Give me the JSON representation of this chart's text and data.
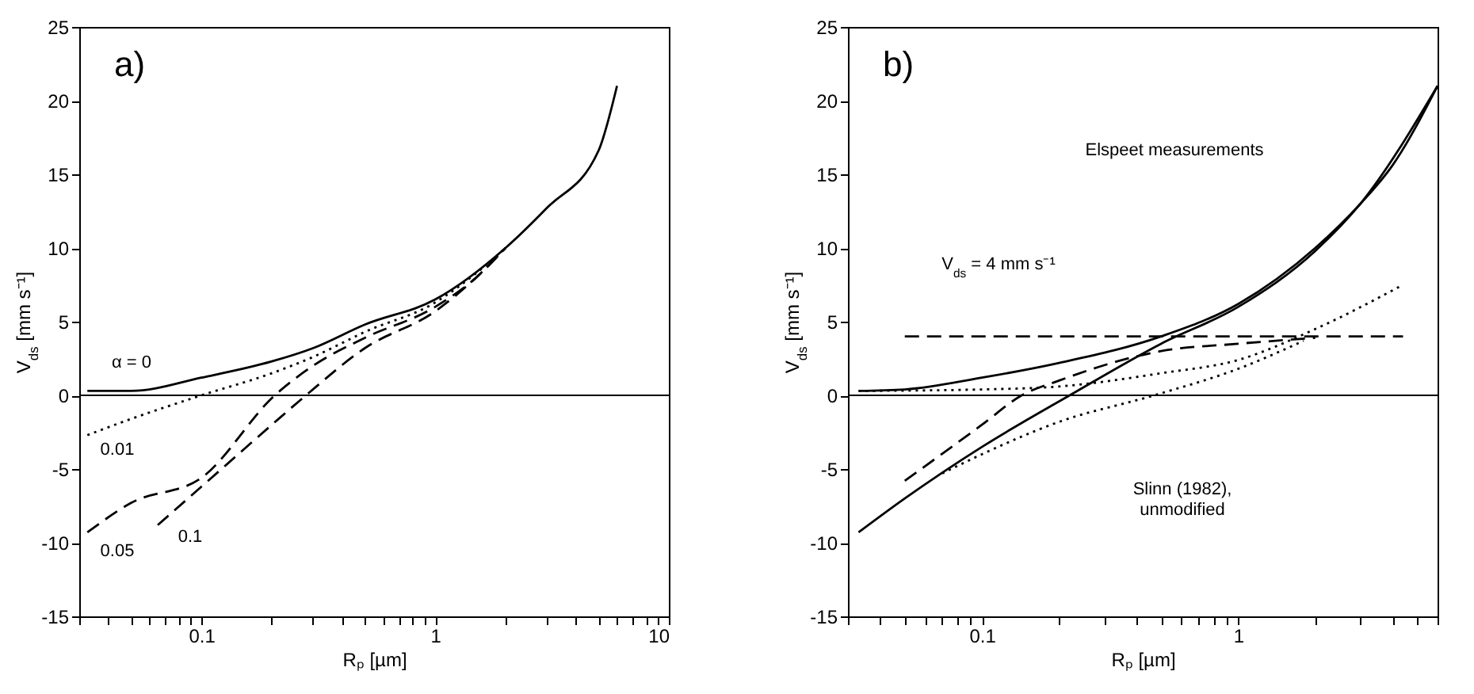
{
  "chart_data": [
    {
      "type": "line",
      "title": "a)",
      "xlabel": "Rₚ [µm]",
      "ylabel": "V$_{ds}$ [mm s⁻¹]",
      "log": "x",
      "grid": false,
      "xlim": [
        0.03,
        10
      ],
      "ylim": [
        -15,
        25
      ],
      "xticks": [
        {
          "value": 0.03,
          "label": null
        },
        {
          "value": 0.04,
          "label": null
        },
        {
          "value": 0.05,
          "label": null
        },
        {
          "value": 0.06,
          "label": null
        },
        {
          "value": 0.07,
          "label": null
        },
        {
          "value": 0.08,
          "label": null
        },
        {
          "value": 0.09,
          "label": null
        },
        0.1,
        {
          "value": 0.2,
          "label": null
        },
        {
          "value": 0.3,
          "label": null
        },
        {
          "value": 0.4,
          "label": null
        },
        {
          "value": 0.5,
          "label": null
        },
        {
          "value": 0.6,
          "label": null
        },
        {
          "value": 0.7,
          "label": null
        },
        {
          "value": 0.8,
          "label": null
        },
        {
          "value": 0.9,
          "label": null
        },
        1,
        {
          "value": 2,
          "label": null
        },
        {
          "value": 3,
          "label": null
        },
        {
          "value": 4,
          "label": null
        },
        {
          "value": 5,
          "label": null
        },
        {
          "value": 6,
          "label": null
        },
        {
          "value": 7,
          "label": null
        },
        {
          "value": 8,
          "label": null
        },
        {
          "value": 9,
          "label": null
        },
        10
      ],
      "yticks": [
        -15,
        -10,
        -5,
        0,
        5,
        10,
        15,
        20,
        25
      ],
      "ref_lines": [
        {
          "axis": "y",
          "value": 0,
          "color": "#000000",
          "line_style": "solid"
        }
      ],
      "series": [
        {
          "color": "#000000",
          "line_style": "solid",
          "x": [
            0.0325,
            0.05,
            0.1,
            0.2,
            0.3,
            0.5,
            1,
            2,
            3,
            5,
            6
          ],
          "values": [
            0.3,
            0.3,
            1.2,
            2.3,
            3.2,
            4.8,
            6.5,
            10,
            12.7,
            16.6,
            21
          ]
        },
        {
          "color": "#000000",
          "line_style": "dotted",
          "x": [
            0.0325,
            0.05,
            0.1,
            0.2,
            0.3,
            0.5,
            1,
            1.5,
            2
          ],
          "values": [
            -2.7,
            -1.6,
            0,
            1.5,
            2.6,
            4.3,
            6.3,
            8.3,
            10
          ]
        },
        {
          "color": "#000000",
          "line_style": "dashed",
          "x": [
            0.0325,
            0.05,
            0.1,
            0.206,
            0.3,
            0.5,
            1,
            1.5,
            2
          ],
          "values": [
            -9.3,
            -7.3,
            -5.6,
            0,
            2,
            3.9,
            6,
            8,
            10
          ]
        },
        {
          "color": "#000000",
          "line_style": "dashed",
          "x": [
            0.065,
            0.1,
            0.2,
            0.28,
            0.5,
            1,
            1.5,
            2
          ],
          "values": [
            -8.8,
            -6.2,
            -2,
            0,
            3.2,
            5.7,
            8,
            10
          ]
        }
      ],
      "annotations": [
        "α = 0",
        "0.01",
        "0.05",
        "0.1"
      ]
    },
    {
      "type": "line",
      "title": "b)",
      "xlabel": "Rₚ [µm]",
      "ylabel": "V$_{ds}$ [mm s⁻¹]",
      "log": "x",
      "grid": false,
      "xlim": [
        0.03,
        6
      ],
      "ylim": [
        -15,
        25
      ],
      "xticks": [
        {
          "value": 0.03,
          "label": null
        },
        {
          "value": 0.04,
          "label": null
        },
        {
          "value": 0.05,
          "label": null
        },
        {
          "value": 0.06,
          "label": null
        },
        {
          "value": 0.07,
          "label": null
        },
        {
          "value": 0.08,
          "label": null
        },
        {
          "value": 0.09,
          "label": null
        },
        0.1,
        {
          "value": 0.2,
          "label": null
        },
        {
          "value": 0.3,
          "label": null
        },
        {
          "value": 0.4,
          "label": null
        },
        {
          "value": 0.5,
          "label": null
        },
        {
          "value": 0.6,
          "label": null
        },
        {
          "value": 0.7,
          "label": null
        },
        {
          "value": 0.8,
          "label": null
        },
        {
          "value": 0.9,
          "label": null
        },
        1,
        {
          "value": 2,
          "label": null
        },
        {
          "value": 3,
          "label": null
        },
        {
          "value": 4,
          "label": null
        },
        {
          "value": 5,
          "label": null
        },
        {
          "value": 6,
          "label": null
        }
      ],
      "yticks": [
        -15,
        -10,
        -5,
        0,
        5,
        10,
        15,
        20,
        25
      ],
      "ref_lines": [
        {
          "axis": "y",
          "value": 0,
          "color": "#000000",
          "line_style": "solid"
        }
      ],
      "series": [
        {
          "color": "#000000",
          "line_style": "solid",
          "x": [
            0.033,
            0.05,
            0.1,
            0.2,
            0.5,
            1,
            2,
            3,
            4,
            6
          ],
          "values": [
            0.3,
            0.4,
            1.2,
            2.2,
            4,
            6.2,
            10,
            13,
            15.6,
            21
          ]
        },
        {
          "color": "#000000",
          "line_style": "solid",
          "x": [
            0.033,
            0.05,
            0.1,
            0.22,
            0.5,
            1,
            2,
            3,
            6
          ],
          "values": [
            -9.3,
            -7,
            -3.5,
            0,
            3.5,
            6,
            9.8,
            13,
            21
          ]
        },
        {
          "color": "#000000",
          "line_style": "dashed",
          "x": [
            0.05,
            0.1,
            0.143,
            0.2,
            0.5,
            1,
            2
          ],
          "values": [
            -5.8,
            -2,
            0,
            1,
            3,
            3.5,
            3.9
          ]
        },
        {
          "color": "#000000",
          "line_style": "dashed",
          "x": [
            0.05,
            4.4
          ],
          "values": [
            4,
            4
          ]
        },
        {
          "color": "#000000",
          "line_style": "dotted",
          "x": [
            0.033,
            0.1,
            0.2,
            0.5,
            1,
            2,
            4.4
          ],
          "values": [
            0.3,
            0.4,
            0.6,
            1.5,
            2.4,
            4.5,
            7.5
          ]
        },
        {
          "color": "#000000",
          "line_style": "dotted",
          "x": [
            0.07,
            0.1,
            0.2,
            0.47,
            1,
            1.8
          ],
          "values": [
            -5.3,
            -4,
            -1.8,
            0,
            1.8,
            3.7
          ]
        }
      ],
      "annotations": [
        "Elspeet measurements",
        "V$_{ds}$ = 4 mm s⁻¹",
        "Slinn (1982),\nunmodified"
      ]
    }
  ]
}
